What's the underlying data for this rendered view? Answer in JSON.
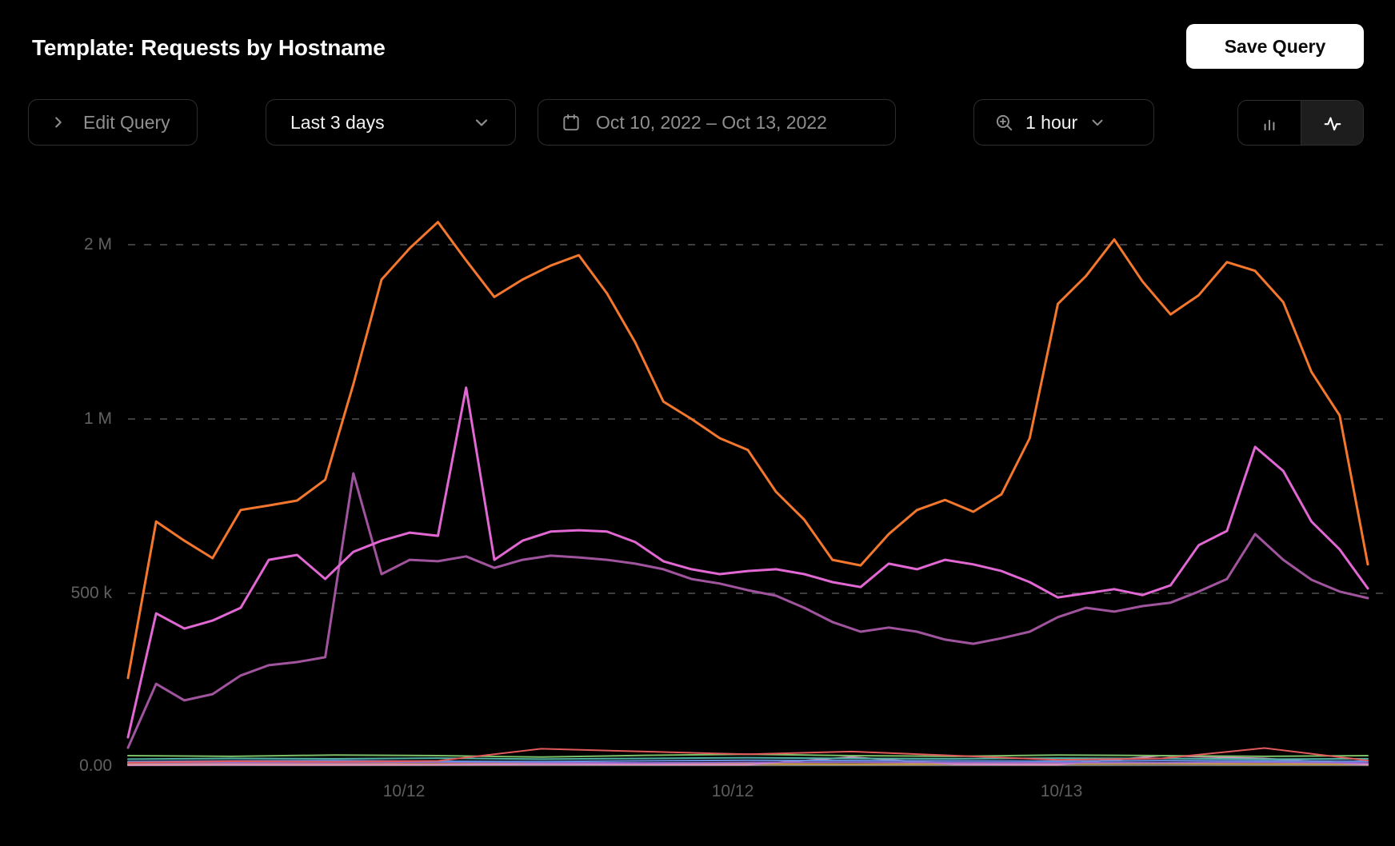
{
  "header": {
    "title": "Template: Requests by Hostname",
    "save_button": "Save Query"
  },
  "toolbar": {
    "edit_query_label": "Edit Query",
    "time_range_value": "Last 3 days",
    "date_range_value": "Oct 10, 2022 – Oct 13, 2022",
    "interval_value": "1 hour"
  },
  "chart_data": {
    "type": "line",
    "title": "Requests by Hostname",
    "xlabel": "",
    "ylabel": "",
    "grid": "horizontal dashed",
    "legend": "none",
    "x_tick_labels": [
      "10/12",
      "10/12",
      "10/13"
    ],
    "y_ticks": [
      {
        "label": "2 M",
        "value": 2000000
      },
      {
        "label": "1 M",
        "value": 1000000
      },
      {
        "label": "500 k",
        "value": 500000
      },
      {
        "label": "0.00",
        "value": 0
      }
    ],
    "y_scale_note": "non-linear: gridlines 0, 500k, 1M, 2M are equally spaced",
    "colors": {
      "background": "#000000",
      "gridline": "#3e3e3e",
      "tick_text": "#616161",
      "accent_orange": "#f4772e",
      "accent_magenta": "#e167d3",
      "accent_purple": "#a0549e"
    },
    "series": [
      {
        "name": "gray",
        "color": "#7d7d7d",
        "width": 2,
        "values": [
          2000,
          2000,
          2000,
          2000,
          2000,
          2000,
          2000,
          2000,
          2000,
          2000,
          2000,
          2000,
          2000
        ]
      },
      {
        "name": "amber",
        "color": "#d4a23d",
        "width": 2,
        "values": [
          5000,
          6000,
          5500,
          6000,
          7000,
          6500,
          6000,
          5500,
          6000,
          6500,
          7000,
          6000,
          5500
        ]
      },
      {
        "name": "pink",
        "color": "#e08fc4",
        "width": 2,
        "values": [
          3000,
          4000,
          3500,
          4000,
          5000,
          4500,
          4000,
          26000,
          5000,
          4000,
          30000,
          22000,
          4000
        ]
      },
      {
        "name": "violet",
        "color": "#9a6cd2",
        "width": 2,
        "values": [
          9000,
          10000,
          9500,
          11000,
          10000,
          9000,
          10500,
          11000,
          10000,
          9500,
          10000,
          11000,
          9000
        ]
      },
      {
        "name": "blue",
        "color": "#6790e0",
        "width": 2,
        "values": [
          13000,
          15000,
          16000,
          14000,
          13000,
          15000,
          17000,
          16000,
          15000,
          14000,
          16000,
          15000,
          14000
        ]
      },
      {
        "name": "teal",
        "color": "#4fb3a5",
        "width": 2,
        "values": [
          20000,
          22000,
          21000,
          23000,
          20000,
          22000,
          24000,
          22000,
          21000,
          23000,
          22000,
          20000,
          21000
        ]
      },
      {
        "name": "green",
        "color": "#7abf65",
        "width": 2,
        "values": [
          30000,
          28000,
          32000,
          30000,
          26000,
          31000,
          34000,
          30000,
          28000,
          32000,
          30000,
          28000,
          30000
        ]
      },
      {
        "name": "red",
        "color": "#e25b5c",
        "width": 2,
        "values": [
          10000,
          14000,
          12000,
          15000,
          50000,
          42000,
          34000,
          42000,
          30000,
          18000,
          22000,
          52000,
          16000
        ]
      },
      {
        "name": "purple",
        "color": "#a0549e",
        "width": 3,
        "values": [
          53000,
          238000,
          190000,
          208000,
          262000,
          292000,
          301000,
          315000,
          844000,
          555000,
          596000,
          592000,
          606000,
          573000,
          596000,
          608000,
          603000,
          596000,
          585000,
          569000,
          541000,
          528000,
          509000,
          493000,
          458000,
          417000,
          389000,
          401000,
          389000,
          366000,
          354000,
          370000,
          389000,
          431000,
          458000,
          447000,
          463000,
          473000,
          505000,
          541000,
          670000,
          596000,
          539000,
          505000,
          486000
        ]
      },
      {
        "name": "magenta",
        "color": "#e167d3",
        "width": 3,
        "values": [
          83000,
          442000,
          398000,
          421000,
          458000,
          596000,
          610000,
          541000,
          619000,
          651000,
          674000,
          665000,
          1180000,
          596000,
          651000,
          677000,
          681000,
          677000,
          647000,
          592000,
          569000,
          555000,
          564000,
          569000,
          555000,
          532000,
          518000,
          585000,
          569000,
          596000,
          583000,
          564000,
          532000,
          488000,
          500000,
          512000,
          495000,
          523000,
          638000,
          679000,
          920000,
          851000,
          706000,
          626000,
          514000
        ]
      },
      {
        "name": "orange",
        "color": "#f4772e",
        "width": 3,
        "values": [
          255000,
          706000,
          651000,
          601000,
          739000,
          752000,
          766000,
          826000,
          1200000,
          1800000,
          1980000,
          2130000,
          1910000,
          1700000,
          1800000,
          1880000,
          1940000,
          1720000,
          1440000,
          1100000,
          1000000,
          945000,
          911000,
          791000,
          711000,
          596000,
          580000,
          670000,
          739000,
          768000,
          734000,
          784000,
          945000,
          1660000,
          1820000,
          2030000,
          1790000,
          1600000,
          1710000,
          1900000,
          1850000,
          1670000,
          1270000,
          1020000,
          583000
        ]
      }
    ]
  }
}
